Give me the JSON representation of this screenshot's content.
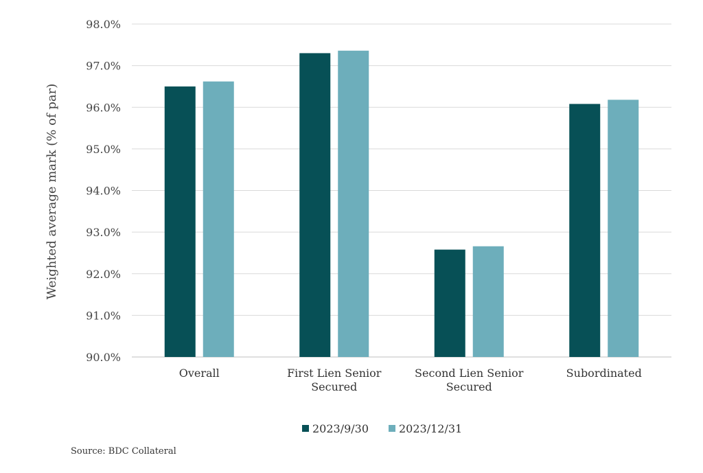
{
  "chart_data": {
    "type": "bar",
    "title": "",
    "xlabel": "",
    "ylabel": "Weighted average mark (% of par)",
    "ylim": [
      90.0,
      98.0
    ],
    "yticks": [
      "90.0%",
      "91.0%",
      "92.0%",
      "93.0%",
      "94.0%",
      "95.0%",
      "96.0%",
      "97.0%",
      "98.0%"
    ],
    "grid": true,
    "legend_position": "bottom",
    "categories": [
      [
        "Overall"
      ],
      [
        "First Lien Senior",
        "Secured"
      ],
      [
        "Second Lien Senior",
        "Secured"
      ],
      [
        "Subordinated"
      ]
    ],
    "series": [
      {
        "name": "2023/9/30",
        "color": "#075056",
        "values": [
          96.5,
          97.3,
          92.58,
          96.08
        ]
      },
      {
        "name": "2023/12/31",
        "color": "#6daebb",
        "values": [
          96.62,
          97.36,
          92.66,
          96.18
        ]
      }
    ]
  },
  "source": "Source: BDC Collateral"
}
